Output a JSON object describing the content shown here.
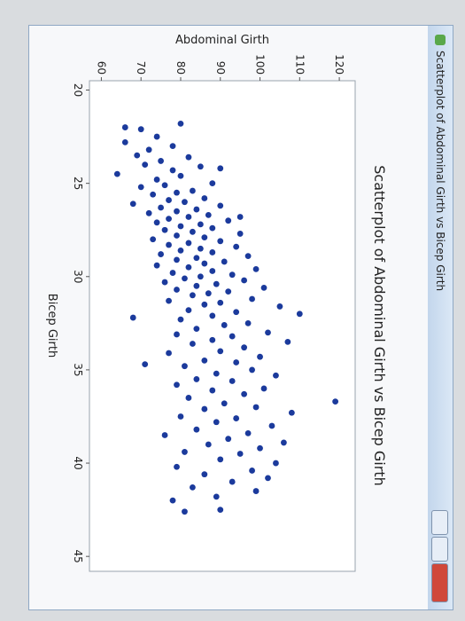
{
  "window_title": "Scatterplot of Abdominal Girth vs Bicep Girth",
  "chart_data": {
    "type": "scatter",
    "title": "Scatterplot of Abdominal Girth vs Bicep Girth",
    "xlabel": "Bicep Girth",
    "ylabel": "Abdominal Girth",
    "color": "#1b3a9c",
    "xlim": [
      19.5,
      45.8
    ],
    "ylim": [
      57,
      124
    ],
    "xticks": [
      20,
      25,
      30,
      35,
      40,
      45
    ],
    "yticks": [
      60,
      70,
      80,
      90,
      100,
      110,
      120
    ],
    "x": [
      22.1,
      22.5,
      22.8,
      23.0,
      23.2,
      23.5,
      23.6,
      23.8,
      24.0,
      24.1,
      24.3,
      24.5,
      24.6,
      24.8,
      25.0,
      25.1,
      25.2,
      25.4,
      25.5,
      25.6,
      25.8,
      25.9,
      26.0,
      26.1,
      26.2,
      26.3,
      26.4,
      26.5,
      26.6,
      26.7,
      26.8,
      26.9,
      27.0,
      27.1,
      27.2,
      27.3,
      27.4,
      27.5,
      27.6,
      27.7,
      27.8,
      27.9,
      28.0,
      28.1,
      28.2,
      28.3,
      28.4,
      28.5,
      28.6,
      28.7,
      28.8,
      28.9,
      29.0,
      29.1,
      29.2,
      29.3,
      29.4,
      29.5,
      29.6,
      29.7,
      29.8,
      29.9,
      30.0,
      30.1,
      30.2,
      30.3,
      30.4,
      30.5,
      30.6,
      30.7,
      30.8,
      30.9,
      31.0,
      31.2,
      31.3,
      31.4,
      31.5,
      31.6,
      31.8,
      31.9,
      32.0,
      32.1,
      32.2,
      32.3,
      32.5,
      32.6,
      32.8,
      33.0,
      33.1,
      33.2,
      33.4,
      33.5,
      33.6,
      33.8,
      34.0,
      34.1,
      34.3,
      34.5,
      34.6,
      34.7,
      34.8,
      35.0,
      35.2,
      35.3,
      35.5,
      35.6,
      35.8,
      36.0,
      36.1,
      36.3,
      36.5,
      36.7,
      36.8,
      37.0,
      37.1,
      37.3,
      37.5,
      37.6,
      37.8,
      38.0,
      38.2,
      38.4,
      38.5,
      38.7,
      38.9,
      39.0,
      39.2,
      39.4,
      39.5,
      39.8,
      40.0,
      40.2,
      40.4,
      40.6,
      40.8,
      41.0,
      41.3,
      41.5,
      41.8,
      42.0,
      42.5,
      42.6,
      22.0,
      21.8,
      24.2,
      26.8
    ],
    "values": [
      70,
      74,
      66,
      78,
      72,
      69,
      82,
      75,
      71,
      85,
      78,
      64,
      80,
      74,
      88,
      76,
      70,
      83,
      79,
      73,
      86,
      77,
      81,
      68,
      90,
      75,
      84,
      79,
      72,
      87,
      82,
      77,
      92,
      74,
      85,
      80,
      88,
      76,
      83,
      95,
      79,
      86,
      73,
      90,
      82,
      77,
      94,
      85,
      80,
      88,
      75,
      97,
      84,
      79,
      91,
      86,
      74,
      82,
      99,
      88,
      78,
      93,
      85,
      81,
      96,
      76,
      89,
      84,
      101,
      79,
      92,
      87,
      83,
      98,
      77,
      90,
      86,
      105,
      82,
      94,
      110,
      88,
      68,
      80,
      97,
      91,
      84,
      102,
      79,
      93,
      88,
      107,
      83,
      96,
      90,
      77,
      100,
      86,
      94,
      71,
      81,
      98,
      89,
      104,
      84,
      93,
      79,
      101,
      88,
      96,
      82,
      119,
      91,
      99,
      86,
      108,
      80,
      94,
      89,
      103,
      84,
      97,
      76,
      92,
      106,
      87,
      100,
      81,
      95,
      90,
      104,
      79,
      98,
      86,
      102,
      93,
      83,
      99,
      89,
      78,
      90,
      81,
      66,
      80,
      90,
      95
    ]
  }
}
